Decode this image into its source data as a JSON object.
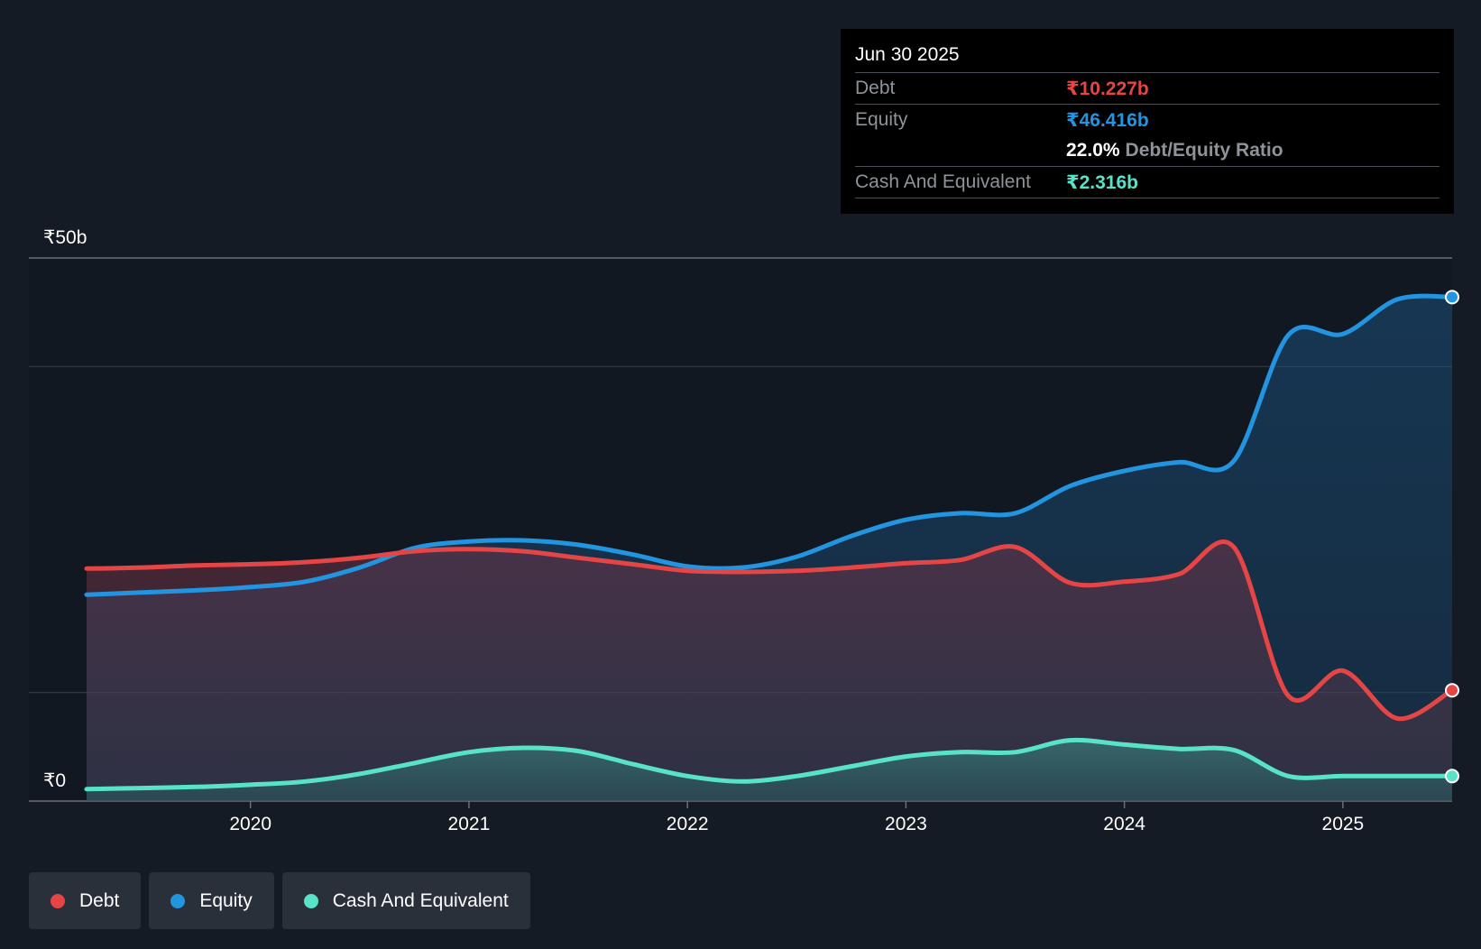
{
  "chart_data": {
    "type": "area",
    "title": "",
    "xlabel": "",
    "ylabel": "",
    "y_tick_labels": [
      "₹0",
      "₹50b"
    ],
    "ylim": [
      0,
      50
    ],
    "xlim": [
      2019.25,
      2025.5
    ],
    "x_tick_labels": [
      "2020",
      "2021",
      "2022",
      "2023",
      "2024",
      "2025"
    ],
    "x_ticks": [
      2020,
      2021,
      2022,
      2023,
      2024,
      2025
    ],
    "y_gridlines": [
      0,
      10,
      40,
      50
    ],
    "series": [
      {
        "name": "Equity",
        "color": "#2394df",
        "x": [
          2019.25,
          2019.5,
          2019.75,
          2020.0,
          2020.25,
          2020.5,
          2020.75,
          2021.0,
          2021.25,
          2021.5,
          2021.75,
          2022.0,
          2022.25,
          2022.5,
          2022.75,
          2023.0,
          2023.25,
          2023.5,
          2023.75,
          2024.0,
          2024.25,
          2024.5,
          2024.75,
          2025.0,
          2025.25,
          2025.5
        ],
        "values": [
          19.0,
          19.2,
          19.4,
          19.7,
          20.2,
          21.5,
          23.3,
          23.9,
          24.0,
          23.6,
          22.7,
          21.6,
          21.5,
          22.5,
          24.4,
          25.9,
          26.5,
          26.5,
          29.0,
          30.4,
          31.2,
          31.3,
          42.9,
          43.0,
          46.2,
          46.4
        ]
      },
      {
        "name": "Debt",
        "color": "#e64545",
        "x": [
          2019.25,
          2019.5,
          2019.75,
          2020.0,
          2020.25,
          2020.5,
          2020.75,
          2021.0,
          2021.25,
          2021.5,
          2021.75,
          2022.0,
          2022.25,
          2022.5,
          2022.75,
          2023.0,
          2023.25,
          2023.5,
          2023.75,
          2024.0,
          2024.25,
          2024.5,
          2024.75,
          2025.0,
          2025.25,
          2025.5
        ],
        "values": [
          21.4,
          21.5,
          21.7,
          21.8,
          22.0,
          22.4,
          23.0,
          23.2,
          23.0,
          22.4,
          21.8,
          21.2,
          21.1,
          21.2,
          21.5,
          21.9,
          22.2,
          23.4,
          20.1,
          20.2,
          20.9,
          23.4,
          9.7,
          12.0,
          7.6,
          10.2
        ]
      },
      {
        "name": "Cash And Equivalent",
        "color": "#58e3c8",
        "x": [
          2019.25,
          2019.5,
          2019.75,
          2020.0,
          2020.25,
          2020.5,
          2020.75,
          2021.0,
          2021.25,
          2021.5,
          2021.75,
          2022.0,
          2022.25,
          2022.5,
          2022.75,
          2023.0,
          2023.25,
          2023.5,
          2023.75,
          2024.0,
          2024.25,
          2024.5,
          2024.75,
          2025.0,
          2025.25,
          2025.5
        ],
        "values": [
          1.1,
          1.2,
          1.3,
          1.5,
          1.8,
          2.5,
          3.5,
          4.5,
          4.9,
          4.6,
          3.4,
          2.3,
          1.8,
          2.3,
          3.2,
          4.1,
          4.5,
          4.5,
          5.6,
          5.2,
          4.8,
          4.7,
          2.3,
          2.3,
          2.3,
          2.3
        ]
      }
    ]
  },
  "tooltip": {
    "date": "Jun 30 2025",
    "debt_label": "Debt",
    "debt_value": "₹10.227b",
    "equity_label": "Equity",
    "equity_value": "₹46.416b",
    "ratio_value": "22.0%",
    "ratio_label": "Debt/Equity Ratio",
    "cash_label": "Cash And Equivalent",
    "cash_value": "₹2.316b"
  },
  "legend": {
    "debt": "Debt",
    "equity": "Equity",
    "cash": "Cash And Equivalent"
  },
  "colors": {
    "debt": "#e64545",
    "equity": "#2394df",
    "cash": "#58e3c8",
    "background": "#151b24"
  }
}
